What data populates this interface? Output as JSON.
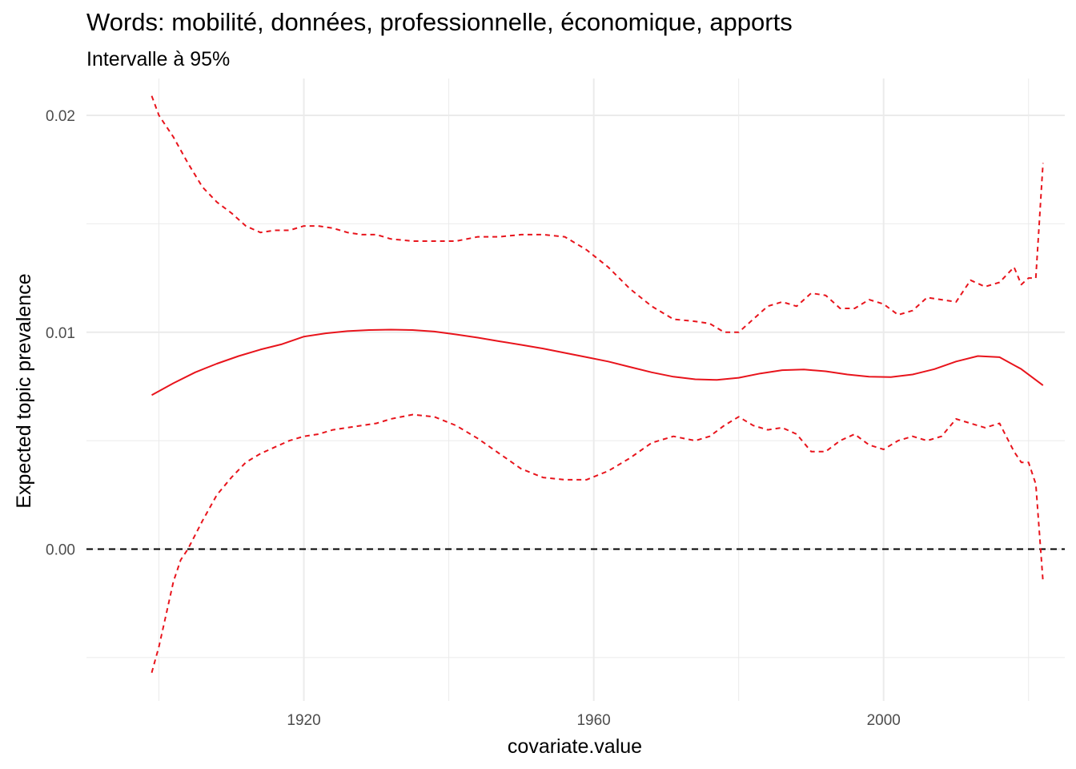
{
  "chart_data": {
    "type": "line",
    "title": "Words: mobilité, données, professionnelle, économique, apports",
    "subtitle": "Intervalle à 95%",
    "xlabel": "covariate.value",
    "ylabel": "Expected topic prevalence",
    "xlim": [
      1890,
      2025
    ],
    "ylim": [
      -0.007,
      0.0217
    ],
    "x_ticks": [
      1920,
      1960,
      2000
    ],
    "x_tick_labels": [
      "1920",
      "1960",
      "2000"
    ],
    "y_ticks": [
      0.0,
      0.01,
      0.02
    ],
    "y_tick_labels": [
      "0.00",
      "0.01",
      "0.02"
    ],
    "grid": true,
    "reference_line": {
      "y": 0.0,
      "style": "dashed",
      "color": "#000000"
    },
    "colors": {
      "series": "#e8141c",
      "grid": "#ebebeb",
      "reference": "#000000"
    },
    "series": [
      {
        "style": "solid",
        "x": [
          1899,
          1902,
          1905,
          1908,
          1911,
          1914,
          1917,
          1920,
          1923,
          1926,
          1929,
          1932,
          1935,
          1938,
          1941,
          1944,
          1947,
          1950,
          1953,
          1956,
          1959,
          1962,
          1965,
          1968,
          1971,
          1974,
          1977,
          1980,
          1983,
          1986,
          1989,
          1992,
          1995,
          1998,
          2001,
          2004,
          2007,
          2010,
          2013,
          2016,
          2019,
          2022
        ],
        "y": [
          0.0071,
          0.00765,
          0.00815,
          0.00855,
          0.0089,
          0.0092,
          0.00945,
          0.0098,
          0.00995,
          0.01005,
          0.0101,
          0.01012,
          0.0101,
          0.01003,
          0.0099,
          0.00975,
          0.00958,
          0.00942,
          0.00925,
          0.00905,
          0.00885,
          0.00865,
          0.0084,
          0.00815,
          0.00795,
          0.00783,
          0.0078,
          0.0079,
          0.0081,
          0.00825,
          0.00828,
          0.0082,
          0.00805,
          0.00795,
          0.00793,
          0.00805,
          0.0083,
          0.00865,
          0.0089,
          0.00885,
          0.0083,
          0.00755
        ]
      },
      {
        "style": "dashed",
        "x": [
          1899,
          1900,
          1902,
          1904,
          1906,
          1908,
          1910,
          1912,
          1914,
          1916,
          1918,
          1920,
          1922,
          1924,
          1926,
          1928,
          1930,
          1932,
          1935,
          1938,
          1941,
          1944,
          1947,
          1950,
          1953,
          1956,
          1959,
          1962,
          1965,
          1968,
          1971,
          1974,
          1976,
          1978,
          1980,
          1982,
          1984,
          1986,
          1988,
          1990,
          1992,
          1994,
          1996,
          1998,
          2000,
          2002,
          2004,
          2006,
          2008,
          2010,
          2012,
          2014,
          2016,
          2018,
          2019,
          2020,
          2021,
          2022
        ],
        "y": [
          0.0209,
          0.02,
          0.019,
          0.0178,
          0.0167,
          0.016,
          0.0155,
          0.0149,
          0.0146,
          0.0147,
          0.0147,
          0.0149,
          0.0149,
          0.0148,
          0.0146,
          0.0145,
          0.0145,
          0.0143,
          0.0142,
          0.0142,
          0.0142,
          0.0144,
          0.0144,
          0.0145,
          0.0145,
          0.0144,
          0.0138,
          0.013,
          0.012,
          0.0112,
          0.0106,
          0.0105,
          0.0104,
          0.01,
          0.01,
          0.0106,
          0.0112,
          0.0114,
          0.0112,
          0.0118,
          0.0117,
          0.0111,
          0.0111,
          0.0115,
          0.0113,
          0.0108,
          0.011,
          0.0116,
          0.0115,
          0.0114,
          0.0124,
          0.0121,
          0.0123,
          0.013,
          0.0122,
          0.0125,
          0.0125,
          0.0178
        ]
      },
      {
        "style": "dashed",
        "x": [
          1899,
          1900,
          1901,
          1902,
          1903,
          1904,
          1906,
          1908,
          1910,
          1912,
          1914,
          1916,
          1918,
          1920,
          1922,
          1924,
          1926,
          1928,
          1930,
          1932,
          1935,
          1938,
          1941,
          1944,
          1947,
          1950,
          1953,
          1956,
          1959,
          1962,
          1965,
          1968,
          1971,
          1974,
          1976,
          1978,
          1980,
          1982,
          1984,
          1986,
          1988,
          1990,
          1992,
          1994,
          1996,
          1998,
          2000,
          2002,
          2004,
          2006,
          2008,
          2010,
          2012,
          2014,
          2016,
          2018,
          2019,
          2020,
          2021,
          2022
        ],
        "y": [
          -0.0057,
          -0.0045,
          -0.003,
          -0.0015,
          -0.0005,
          0.0,
          0.0013,
          0.0025,
          0.0033,
          0.004,
          0.0044,
          0.0047,
          0.005,
          0.0052,
          0.0053,
          0.0055,
          0.0056,
          0.0057,
          0.0058,
          0.006,
          0.0062,
          0.0061,
          0.0057,
          0.0051,
          0.0044,
          0.0037,
          0.0033,
          0.0032,
          0.0032,
          0.0036,
          0.0042,
          0.0049,
          0.0052,
          0.005,
          0.0052,
          0.0057,
          0.0061,
          0.0057,
          0.0055,
          0.0056,
          0.0053,
          0.0045,
          0.0045,
          0.005,
          0.0053,
          0.0048,
          0.0046,
          0.005,
          0.0052,
          0.005,
          0.0052,
          0.006,
          0.0058,
          0.0056,
          0.0058,
          0.0045,
          0.004,
          0.004,
          0.003,
          -0.0015
        ]
      }
    ]
  }
}
